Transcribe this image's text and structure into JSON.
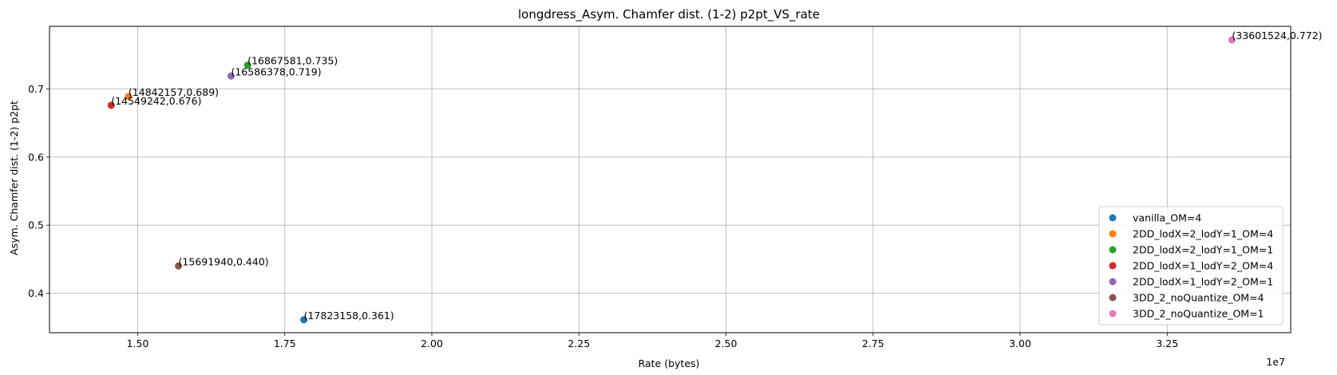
{
  "chart_data": {
    "type": "scatter",
    "title": "longdress_Asym. Chamfer dist. (1-2) p2pt_VS_rate",
    "xlabel": "Rate (bytes)",
    "ylabel": "Asym. Chamfer dist. (1-2) p2pt",
    "x_offset_label": "1e7",
    "xlim": [
      13500000,
      34600000
    ],
    "ylim": [
      0.342,
      0.792
    ],
    "xticks": [
      15000000,
      17500000,
      20000000,
      22500000,
      25000000,
      27500000,
      30000000,
      32500000
    ],
    "xtick_labels": [
      "1.50",
      "1.75",
      "2.00",
      "2.25",
      "2.50",
      "2.75",
      "3.00",
      "3.25"
    ],
    "yticks": [
      0.4,
      0.5,
      0.6,
      0.7
    ],
    "ytick_labels": [
      "0.4",
      "0.5",
      "0.6",
      "0.7"
    ],
    "grid": true,
    "legend_position": "lower-right",
    "series": [
      {
        "name": "vanilla_OM=4",
        "color": "#1f77b4",
        "x": 17823158,
        "y": 0.361,
        "label": "(17823158,0.361)"
      },
      {
        "name": "2DD_lodX=2_lodY=1_OM=4",
        "color": "#ff7f0e",
        "x": 14842157,
        "y": 0.689,
        "label": "(14842157,0.689)"
      },
      {
        "name": "2DD_lodX=2_lodY=1_OM=1",
        "color": "#2ca02c",
        "x": 16867581,
        "y": 0.735,
        "label": "(16867581,0.735)"
      },
      {
        "name": "2DD_lodX=1_lodY=2_OM=4",
        "color": "#d62728",
        "x": 14549242,
        "y": 0.676,
        "label": "(14549242,0.676)"
      },
      {
        "name": "2DD_lodX=1_lodY=2_OM=1",
        "color": "#9467bd",
        "x": 16586378,
        "y": 0.719,
        "label": "(16586378,0.719)"
      },
      {
        "name": "3DD_2_noQuantize_OM=4",
        "color": "#8c564b",
        "x": 15691940,
        "y": 0.44,
        "label": "(15691940,0.440)"
      },
      {
        "name": "3DD_2_noQuantize_OM=1",
        "color": "#e377c2",
        "x": 33601524,
        "y": 0.772,
        "label": "(33601524,0.772)"
      }
    ]
  }
}
